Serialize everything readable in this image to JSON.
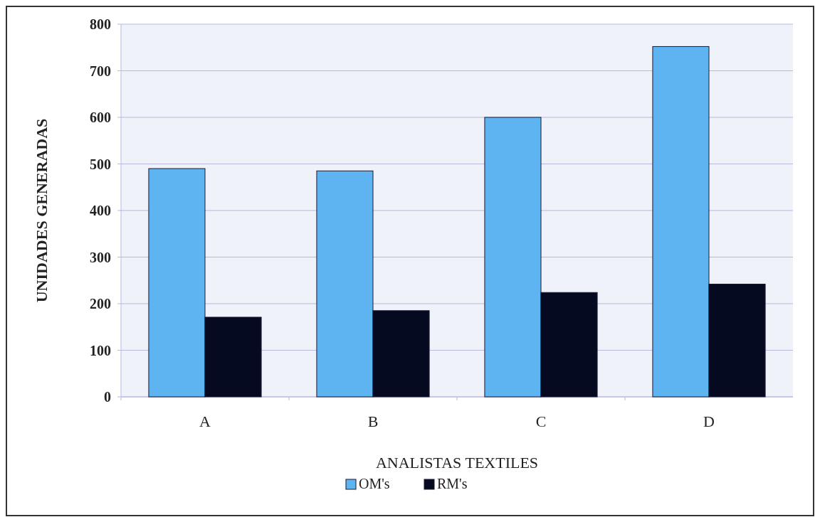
{
  "chart_data": {
    "type": "bar",
    "xlabel": "ANALISTAS TEXTILES",
    "ylabel": "UNIDADES GENERADAS",
    "categories": [
      "A",
      "B",
      "C",
      "D"
    ],
    "series": [
      {
        "name": "OM's",
        "color": "#5eb4f0",
        "values": [
          490,
          485,
          600,
          752
        ]
      },
      {
        "name": "RM's",
        "color": "#050a20",
        "values": [
          171,
          185,
          224,
          242
        ]
      }
    ],
    "ylim": [
      0,
      800
    ],
    "yticks": [
      0,
      100,
      200,
      300,
      400,
      500,
      600,
      700,
      800
    ],
    "grid": "y",
    "legend": "bottom"
  }
}
